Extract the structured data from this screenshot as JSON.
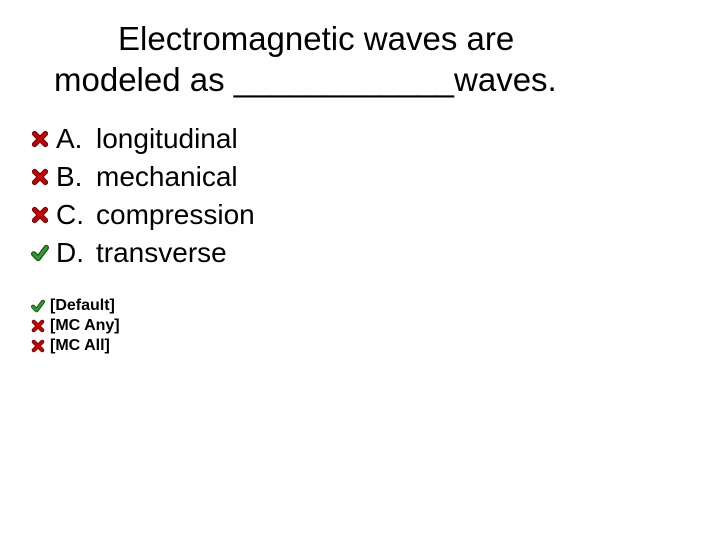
{
  "title_line1": "Electromagnetic waves are",
  "title_line2": "modeled as ____________waves.",
  "answers": [
    {
      "letter": "A.",
      "text": "longitudinal",
      "correct": false
    },
    {
      "letter": "B.",
      "text": "mechanical",
      "correct": false
    },
    {
      "letter": "C.",
      "text": "compression",
      "correct": false
    },
    {
      "letter": "D.",
      "text": "transverse",
      "correct": true
    }
  ],
  "options": [
    {
      "label": "[Default]",
      "correct": true
    },
    {
      "label": "[MC Any]",
      "correct": false
    },
    {
      "label": "[MC All]",
      "correct": false
    }
  ],
  "icon_colors": {
    "x_fill": "#cc0000",
    "x_shadow": "#660000",
    "check_fill": "#339933",
    "check_shadow": "#0a4d0a"
  }
}
